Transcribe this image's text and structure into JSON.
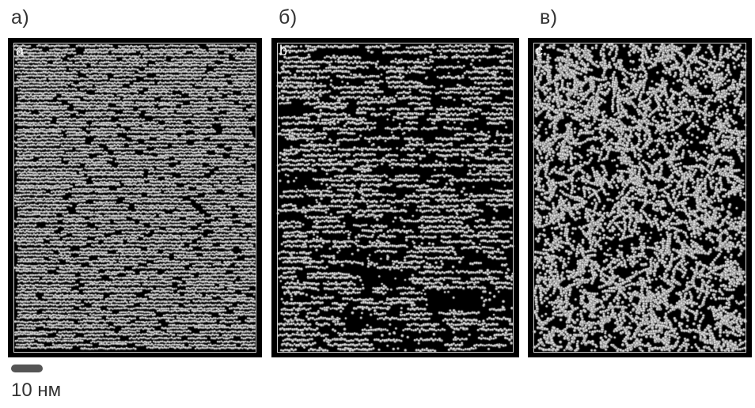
{
  "panels": [
    {
      "caption": "а)",
      "letter": "a",
      "density": "dense-layered"
    },
    {
      "caption": "б)",
      "letter": "b",
      "density": "medium-layered"
    },
    {
      "caption": "в)",
      "letter": "c",
      "density": "disordered"
    }
  ],
  "scale_bar": {
    "label": "10 нм"
  },
  "colors": {
    "background": "#000000",
    "particle": "#d9d9d9",
    "caption": "#333333"
  }
}
